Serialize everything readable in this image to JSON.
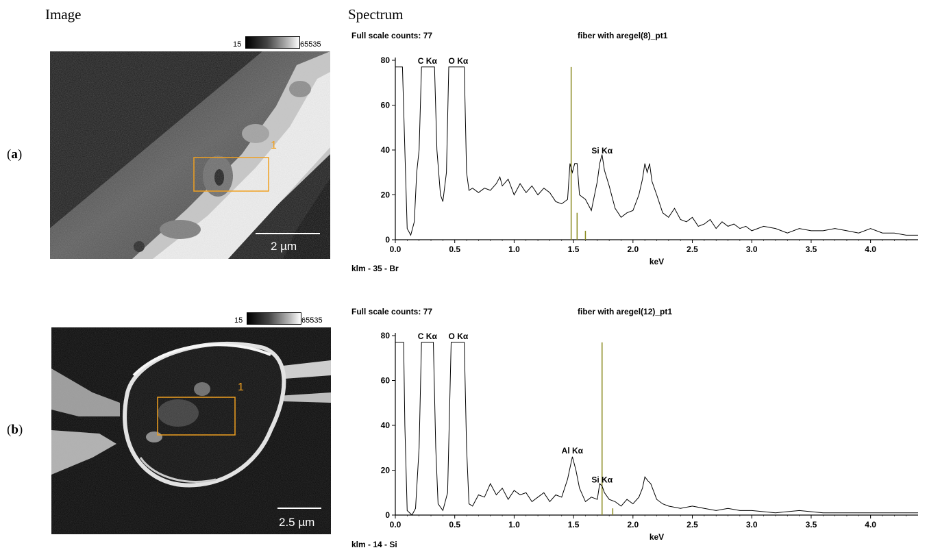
{
  "headers": {
    "image": "Image",
    "spectrum": "Spectrum"
  },
  "panels": [
    {
      "label_open": "(",
      "label_letter": "a",
      "label_close": ")",
      "gray_min": "15",
      "gray_max": "65535",
      "roi_label": "1",
      "scale_bar": "2 µm",
      "full_scale": "Full scale counts: 77",
      "spectrum_title": "fiber with aregel(8)_pt1",
      "klm": "klm - 35 - Br",
      "xlabel": "keV",
      "colors": {
        "trace": "#000000",
        "marker": "#8a8a1e",
        "roi": "#f0a020"
      }
    },
    {
      "label_open": "(",
      "label_letter": "b",
      "label_close": ")",
      "gray_min": "15",
      "gray_max": "65535",
      "roi_label": "1",
      "scale_bar": "2.5 µm",
      "full_scale": "Full scale counts: 77",
      "spectrum_title": "fiber with aregel(12)_pt1",
      "klm": "klm - 14 - Si",
      "xlabel": "keV",
      "colors": {
        "trace": "#000000",
        "marker": "#8a8a1e",
        "roi": "#f0a020"
      }
    }
  ],
  "chart_data": [
    {
      "type": "line",
      "title": "fiber with aregel(8)_pt1",
      "xlabel": "keV",
      "ylabel": "",
      "xlim": [
        0.0,
        4.4
      ],
      "ylim": [
        0,
        80
      ],
      "x_ticks": [
        "0.0",
        "0.5",
        "1.0",
        "1.5",
        "2.0",
        "2.5",
        "3.0",
        "3.5",
        "4.0"
      ],
      "y_ticks": [
        "0",
        "20",
        "40",
        "60",
        "80"
      ],
      "full_scale_counts": 77,
      "peak_labels": [
        {
          "text": "C Kα",
          "x": 0.27,
          "y": 77
        },
        {
          "text": "O Kα",
          "x": 0.53,
          "y": 77
        },
        {
          "text": "Si Kα",
          "x": 1.74,
          "y": 37
        }
      ],
      "markers": [
        {
          "x": 1.48,
          "height": 77
        },
        {
          "x": 1.53,
          "height": 12
        },
        {
          "x": 1.6,
          "height": 4
        }
      ],
      "series": [
        {
          "points": [
            [
              0.0,
              77
            ],
            [
              0.06,
              77
            ],
            [
              0.08,
              40
            ],
            [
              0.1,
              5
            ],
            [
              0.13,
              2
            ],
            [
              0.16,
              8
            ],
            [
              0.18,
              30
            ],
            [
              0.2,
              40
            ],
            [
              0.22,
              77
            ],
            [
              0.33,
              77
            ],
            [
              0.35,
              40
            ],
            [
              0.38,
              20
            ],
            [
              0.4,
              17
            ],
            [
              0.43,
              30
            ],
            [
              0.45,
              77
            ],
            [
              0.58,
              77
            ],
            [
              0.6,
              30
            ],
            [
              0.62,
              22
            ],
            [
              0.65,
              23
            ],
            [
              0.7,
              21
            ],
            [
              0.75,
              23
            ],
            [
              0.8,
              22
            ],
            [
              0.85,
              25
            ],
            [
              0.88,
              28
            ],
            [
              0.9,
              24
            ],
            [
              0.95,
              27
            ],
            [
              1.0,
              20
            ],
            [
              1.05,
              25
            ],
            [
              1.1,
              21
            ],
            [
              1.15,
              24
            ],
            [
              1.2,
              20
            ],
            [
              1.25,
              23
            ],
            [
              1.3,
              21
            ],
            [
              1.35,
              17
            ],
            [
              1.4,
              16
            ],
            [
              1.45,
              18
            ],
            [
              1.47,
              34
            ],
            [
              1.49,
              30
            ],
            [
              1.51,
              34
            ],
            [
              1.53,
              34
            ],
            [
              1.55,
              20
            ],
            [
              1.6,
              18
            ],
            [
              1.65,
              13
            ],
            [
              1.7,
              26
            ],
            [
              1.72,
              34
            ],
            [
              1.74,
              38
            ],
            [
              1.76,
              31
            ],
            [
              1.8,
              24
            ],
            [
              1.85,
              14
            ],
            [
              1.9,
              10
            ],
            [
              1.95,
              12
            ],
            [
              2.0,
              13
            ],
            [
              2.05,
              20
            ],
            [
              2.08,
              27
            ],
            [
              2.1,
              34
            ],
            [
              2.12,
              30
            ],
            [
              2.14,
              34
            ],
            [
              2.16,
              26
            ],
            [
              2.2,
              20
            ],
            [
              2.25,
              12
            ],
            [
              2.3,
              10
            ],
            [
              2.35,
              14
            ],
            [
              2.4,
              9
            ],
            [
              2.45,
              8
            ],
            [
              2.5,
              10
            ],
            [
              2.55,
              6
            ],
            [
              2.6,
              7
            ],
            [
              2.65,
              9
            ],
            [
              2.7,
              5
            ],
            [
              2.75,
              8
            ],
            [
              2.8,
              6
            ],
            [
              2.85,
              7
            ],
            [
              2.9,
              5
            ],
            [
              2.95,
              6
            ],
            [
              3.0,
              4
            ],
            [
              3.1,
              6
            ],
            [
              3.2,
              5
            ],
            [
              3.3,
              3
            ],
            [
              3.4,
              5
            ],
            [
              3.5,
              4
            ],
            [
              3.6,
              4
            ],
            [
              3.7,
              5
            ],
            [
              3.8,
              4
            ],
            [
              3.9,
              3
            ],
            [
              4.0,
              5
            ],
            [
              4.1,
              3
            ],
            [
              4.2,
              3
            ],
            [
              4.3,
              2
            ],
            [
              4.4,
              2
            ]
          ]
        }
      ]
    },
    {
      "type": "line",
      "title": "fiber with aregel(12)_pt1",
      "xlabel": "keV",
      "ylabel": "",
      "xlim": [
        0.0,
        4.4
      ],
      "ylim": [
        0,
        80
      ],
      "x_ticks": [
        "0.0",
        "0.5",
        "1.0",
        "1.5",
        "2.0",
        "2.5",
        "3.0",
        "3.5",
        "4.0"
      ],
      "y_ticks": [
        "0",
        "20",
        "40",
        "60",
        "80"
      ],
      "full_scale_counts": 77,
      "peak_labels": [
        {
          "text": "C Kα",
          "x": 0.27,
          "y": 77
        },
        {
          "text": "O Kα",
          "x": 0.53,
          "y": 77
        },
        {
          "text": "Al Kα",
          "x": 1.49,
          "y": 26
        },
        {
          "text": "Si Kα",
          "x": 1.74,
          "y": 13
        }
      ],
      "markers": [
        {
          "x": 1.74,
          "height": 77
        },
        {
          "x": 1.83,
          "height": 3
        }
      ],
      "series": [
        {
          "points": [
            [
              0.0,
              77
            ],
            [
              0.07,
              77
            ],
            [
              0.08,
              40
            ],
            [
              0.1,
              2
            ],
            [
              0.14,
              0
            ],
            [
              0.17,
              3
            ],
            [
              0.2,
              30
            ],
            [
              0.22,
              77
            ],
            [
              0.32,
              77
            ],
            [
              0.34,
              30
            ],
            [
              0.36,
              5
            ],
            [
              0.4,
              2
            ],
            [
              0.44,
              10
            ],
            [
              0.47,
              77
            ],
            [
              0.58,
              77
            ],
            [
              0.6,
              30
            ],
            [
              0.62,
              5
            ],
            [
              0.65,
              4
            ],
            [
              0.7,
              9
            ],
            [
              0.75,
              8
            ],
            [
              0.8,
              14
            ],
            [
              0.85,
              9
            ],
            [
              0.9,
              12
            ],
            [
              0.95,
              7
            ],
            [
              1.0,
              11
            ],
            [
              1.05,
              9
            ],
            [
              1.1,
              10
            ],
            [
              1.15,
              6
            ],
            [
              1.2,
              8
            ],
            [
              1.25,
              10
            ],
            [
              1.3,
              6
            ],
            [
              1.35,
              9
            ],
            [
              1.4,
              8
            ],
            [
              1.45,
              16
            ],
            [
              1.49,
              26
            ],
            [
              1.52,
              20
            ],
            [
              1.55,
              12
            ],
            [
              1.6,
              6
            ],
            [
              1.65,
              8
            ],
            [
              1.7,
              7
            ],
            [
              1.72,
              14
            ],
            [
              1.74,
              13
            ],
            [
              1.76,
              10
            ],
            [
              1.8,
              7
            ],
            [
              1.85,
              6
            ],
            [
              1.9,
              4
            ],
            [
              1.95,
              7
            ],
            [
              2.0,
              5
            ],
            [
              2.05,
              8
            ],
            [
              2.08,
              12
            ],
            [
              2.1,
              17
            ],
            [
              2.13,
              15
            ],
            [
              2.15,
              14
            ],
            [
              2.2,
              7
            ],
            [
              2.25,
              5
            ],
            [
              2.3,
              4
            ],
            [
              2.4,
              3
            ],
            [
              2.5,
              4
            ],
            [
              2.6,
              3
            ],
            [
              2.7,
              2
            ],
            [
              2.8,
              3
            ],
            [
              2.9,
              2
            ],
            [
              3.0,
              2
            ],
            [
              3.2,
              1
            ],
            [
              3.4,
              2
            ],
            [
              3.6,
              1
            ],
            [
              3.8,
              1
            ],
            [
              4.0,
              1
            ],
            [
              4.2,
              1
            ],
            [
              4.4,
              1
            ]
          ]
        }
      ]
    }
  ]
}
